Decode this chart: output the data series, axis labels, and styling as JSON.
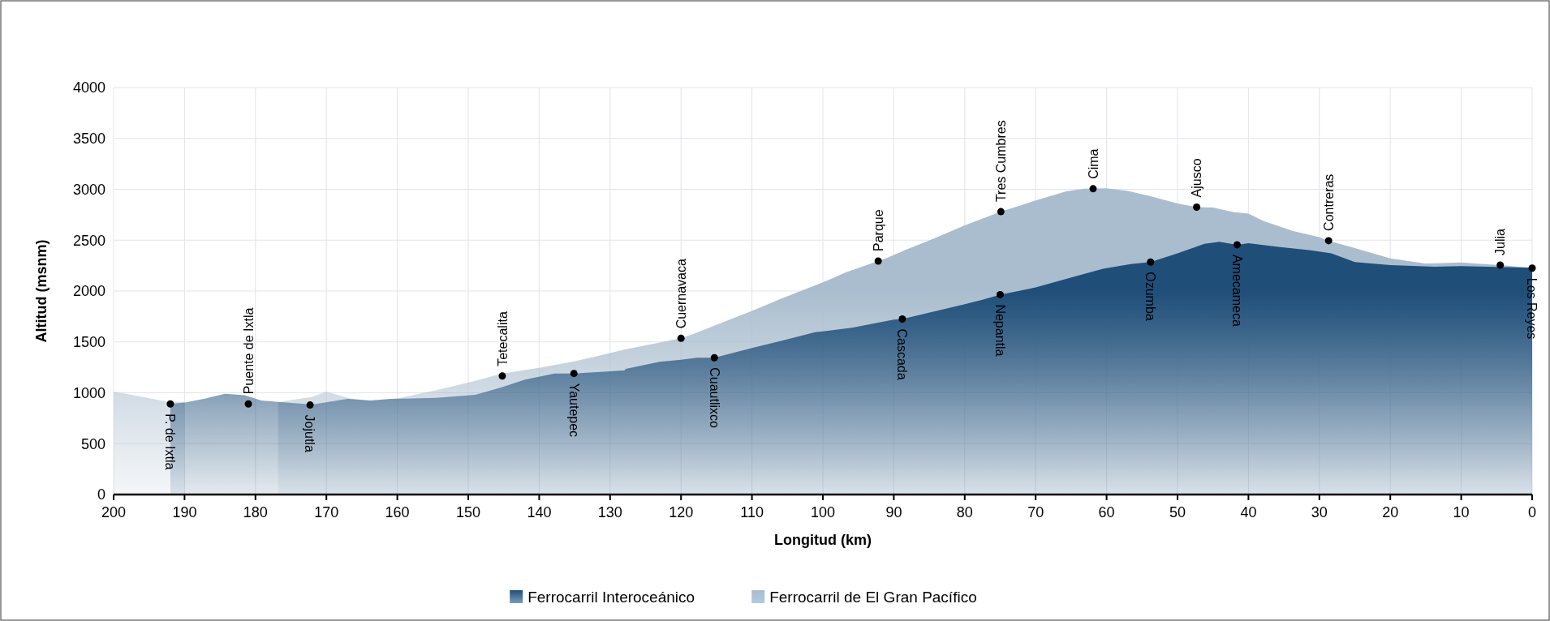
{
  "chart_data": {
    "type": "area",
    "xlabel": "Longitud (km)",
    "ylabel": "Altitud (msnm)",
    "xlim": [
      200,
      0
    ],
    "xticks": [
      200,
      190,
      180,
      170,
      160,
      150,
      140,
      130,
      120,
      110,
      100,
      90,
      80,
      70,
      60,
      50,
      40,
      30,
      20,
      10,
      0
    ],
    "ylim": [
      0,
      4000
    ],
    "yticks": [
      0,
      500,
      1000,
      1500,
      2000,
      2500,
      3000,
      3500,
      4000
    ],
    "grid": true,
    "legend": "bottom",
    "series": [
      {
        "name": "Ferrocarril de El Gran Pacífico",
        "color": "#aabdce",
        "x": [
          200,
          198.2,
          192.6,
          190,
          185,
          181,
          176.8,
          172,
          170,
          166.6,
          163.8,
          160,
          154.5,
          150,
          145.2,
          140,
          134.9,
          130,
          128,
          120,
          118.2,
          115.1,
          110,
          105.9,
          100,
          96.7,
          92.2,
          91,
          88,
          84.9,
          80,
          74.9,
          70,
          65.7,
          63.1,
          60,
          57,
          53.7,
          50,
          47.3,
          45,
          42,
          40,
          37.9,
          33.7,
          30,
          28.7,
          25.4,
          20,
          15.1,
          10,
          8,
          4.5,
          2,
          0
        ],
        "values": [
          1010,
          990,
          915,
          910,
          null,
          null,
          908,
          960,
          1010,
          945,
          920,
          945,
          1025,
          1100,
          1190,
          1245,
          1310,
          1390,
          1425,
          1535,
          1580,
          1665,
          1805,
          1925,
          2085,
          2185,
          2295,
          2325,
          2415,
          2500,
          2645,
          2780,
          2890,
          2980,
          3005,
          3010,
          2985,
          2930,
          2860,
          2825,
          2820,
          2775,
          2760,
          2690,
          2590,
          2530,
          2495,
          2430,
          2320,
          2270,
          2280,
          2270,
          2255,
          2240,
          2230
        ]
      },
      {
        "name": "Ferrocarril Interoceánico",
        "color": "#1f4e79",
        "x": [
          192,
          189.9,
          187,
          184.3,
          181.5,
          179.2,
          176.8,
          172,
          167,
          163.8,
          161,
          154.5,
          149,
          145.2,
          142,
          137.8,
          135.1,
          128,
          127.8,
          123,
          120,
          117.7,
          115.3,
          110,
          105.9,
          101.1,
          95.9,
          90,
          88.8,
          80,
          77.5,
          75,
          70,
          65.7,
          60.5,
          56.6,
          53.8,
          51.6,
          50,
          46.2,
          44.1,
          41.6,
          40,
          35.8,
          31.2,
          28.3,
          25,
          20,
          13.8,
          10,
          0
        ],
        "values": [
          890,
          905,
          945,
          990,
          977,
          925,
          910,
          885,
          940,
          925,
          940,
          950,
          980,
          1055,
          1130,
          1190,
          1190,
          1220,
          1235,
          1305,
          1325,
          1345,
          1345,
          1440,
          1510,
          1595,
          1640,
          1720,
          1725,
          1870,
          1915,
          1965,
          2035,
          2120,
          2220,
          2265,
          2285,
          2335,
          2370,
          2465,
          2485,
          2455,
          2470,
          2435,
          2400,
          2370,
          2285,
          2255,
          2240,
          2245,
          2230
        ]
      },
      {
        "type": "scatter",
        "color": "#000000",
        "marker": "circle",
        "x": [
          181,
          145.2,
          120,
          92.2,
          74.9,
          61.9,
          47.3,
          28.7,
          4.5
        ],
        "values": [
          890,
          1165,
          1535,
          2295,
          2780,
          3005,
          2825,
          2495,
          2255
        ]
      },
      {
        "type": "scatter",
        "color": "#000000",
        "marker": "circle",
        "x": [
          192,
          172.3,
          135.1,
          115.3,
          88.8,
          75,
          53.8,
          41.6,
          0
        ],
        "values": [
          890,
          880,
          1190,
          1345,
          1725,
          1965,
          2285,
          2455,
          2225
        ]
      }
    ],
    "annotations": [
      {
        "text": "P. de Ixtla",
        "x": 192,
        "y": 890
      },
      {
        "text": "Puente de Ixtla",
        "x": 181,
        "y": 890
      },
      {
        "text": "Jojutla",
        "x": 172.3,
        "y": 880
      },
      {
        "text": "Tetecalita",
        "x": 145.2,
        "y": 1165
      },
      {
        "text": "Yautepec",
        "x": 135.1,
        "y": 1190
      },
      {
        "text": "Cuernavaca",
        "x": 120,
        "y": 1535
      },
      {
        "text": "Cuautlixco",
        "x": 115.3,
        "y": 1345
      },
      {
        "text": "Parque",
        "x": 92.2,
        "y": 2295
      },
      {
        "text": "Cascada",
        "x": 88.8,
        "y": 1725
      },
      {
        "text": "Tres Cumbres",
        "x": 74.9,
        "y": 2780
      },
      {
        "text": "Nepantla",
        "x": 75,
        "y": 1965
      },
      {
        "text": "Cima",
        "x": 61.9,
        "y": 3005
      },
      {
        "text": "Ozumba",
        "x": 53.8,
        "y": 2285
      },
      {
        "text": "Ajusco",
        "x": 47.3,
        "y": 2825
      },
      {
        "text": "Amecameca",
        "x": 41.6,
        "y": 2455
      },
      {
        "text": "Contreras",
        "x": 28.7,
        "y": 2495
      },
      {
        "text": "Julia",
        "x": 4.5,
        "y": 2255
      },
      {
        "text": "Los Reyes",
        "x": 0,
        "y": 2225
      }
    ]
  }
}
